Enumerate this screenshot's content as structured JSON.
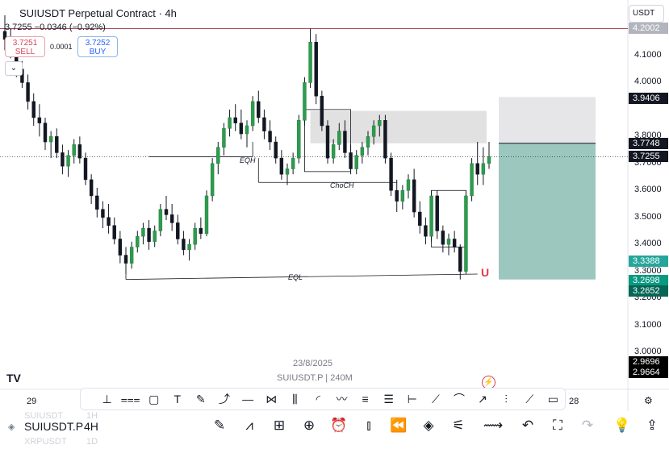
{
  "header": {
    "title": "SUIUSDT Perpetual Contract · 4h",
    "price_line": "3.7255 −0.0346 (−0.92%)",
    "sell_price": "3.7251",
    "sell_label": "SELL",
    "buy_price": "3.7252",
    "buy_label": "BUY",
    "spread": "0.0001",
    "collapse_icon": "chevron-down-icon"
  },
  "currency": "USDT",
  "price_axis": [
    "4.1000",
    "4.0000",
    "3.8000",
    "3.7000",
    "3.6000",
    "3.5000",
    "3.4000",
    "3.3000",
    "3.2000",
    "3.1000",
    "3.0000"
  ],
  "price_tags": [
    {
      "label": "4.2002",
      "color": "#b2b5be"
    },
    {
      "label": "3.9406",
      "color": "#131722"
    },
    {
      "label": "3.7748",
      "color": "#131722"
    },
    {
      "label": "3.7255",
      "color": "#131722"
    },
    {
      "label": "3.3388",
      "color": "#26a69a"
    },
    {
      "label": "3.2698",
      "color": "#089981"
    },
    {
      "label": "3.2652",
      "color": "#056656"
    },
    {
      "label": "2.9696",
      "color": "#000000"
    },
    {
      "label": "2.9664",
      "color": "#000000"
    }
  ],
  "annotations": {
    "eqh": "EQH",
    "choch": "ChoCH",
    "eql": "EQL"
  },
  "center_date": "23/8/2025",
  "center_symbol": "SUIUSDT.P | 240M",
  "time_axis": [
    "29",
    "28"
  ],
  "logo": "TV",
  "drawing_tools": [
    "cursor-cross-icon",
    "parallel-channel-icon",
    "rectangle-icon",
    "text-icon",
    "brush-icon",
    "path-icon",
    "horizontal-line-icon",
    "xabcd-pattern-icon",
    "long-position-icon",
    "arc-icon",
    "polyline-icon",
    "fib-icon",
    "pitchfork-icon",
    "date-range-icon",
    "trend-line-icon",
    "curve-icon",
    "arrow-marker-icon",
    "forecast-icon",
    "ray-icon",
    "callout-icon"
  ],
  "bottom": {
    "symbol": "SUIUSDT.P",
    "interval": "4H",
    "ghost_above_symbol": "SUIUSDT",
    "ghost_above_interval": "1H",
    "ghost_below_symbol": "XRPUSDT",
    "ghost_below_interval": "1D",
    "icons": [
      "pencil-icon",
      "indicators-icon",
      "grid-layout-icon",
      "add-icon",
      "alarm-icon",
      "candles-icon",
      "replay-icon",
      "layers-icon",
      "settings-sliders-icon",
      "compare-icon",
      "undo-icon",
      "fullscreen-icon",
      "redo-icon",
      "lightbulb-icon",
      "share-icon"
    ]
  },
  "chart_data": {
    "type": "candlestick",
    "symbol": "SUIUSDT.P",
    "interval": "4h",
    "current_price": 3.7255,
    "ylim": [
      2.92,
      4.28
    ],
    "candles": [
      [
        4.19,
        4.25,
        4.12,
        4.16
      ],
      [
        4.16,
        4.2,
        4.09,
        4.12
      ],
      [
        4.12,
        4.15,
        4.02,
        4.05
      ],
      [
        4.05,
        4.08,
        3.98,
        4.0
      ],
      [
        4.0,
        4.03,
        3.9,
        3.93
      ],
      [
        3.93,
        3.96,
        3.84,
        3.87
      ],
      [
        3.87,
        3.92,
        3.8,
        3.85
      ],
      [
        3.85,
        3.87,
        3.75,
        3.78
      ],
      [
        3.78,
        3.82,
        3.72,
        3.8
      ],
      [
        3.8,
        3.83,
        3.72,
        3.74
      ],
      [
        3.74,
        3.77,
        3.66,
        3.69
      ],
      [
        3.69,
        3.75,
        3.65,
        3.73
      ],
      [
        3.73,
        3.79,
        3.7,
        3.77
      ],
      [
        3.77,
        3.8,
        3.7,
        3.72
      ],
      [
        3.72,
        3.74,
        3.62,
        3.64
      ],
      [
        3.64,
        3.66,
        3.55,
        3.58
      ],
      [
        3.58,
        3.61,
        3.5,
        3.53
      ],
      [
        3.53,
        3.56,
        3.46,
        3.5
      ],
      [
        3.5,
        3.55,
        3.44,
        3.47
      ],
      [
        3.47,
        3.5,
        3.4,
        3.42
      ],
      [
        3.42,
        3.45,
        3.33,
        3.36
      ],
      [
        3.36,
        3.39,
        3.29,
        3.33
      ],
      [
        3.33,
        3.41,
        3.31,
        3.39
      ],
      [
        3.39,
        3.45,
        3.37,
        3.43
      ],
      [
        3.43,
        3.48,
        3.4,
        3.46
      ],
      [
        3.46,
        3.49,
        3.38,
        3.41
      ],
      [
        3.41,
        3.47,
        3.39,
        3.45
      ],
      [
        3.45,
        3.55,
        3.43,
        3.53
      ],
      [
        3.53,
        3.58,
        3.49,
        3.51
      ],
      [
        3.51,
        3.55,
        3.45,
        3.48
      ],
      [
        3.48,
        3.51,
        3.4,
        3.42
      ],
      [
        3.42,
        3.45,
        3.36,
        3.38
      ],
      [
        3.38,
        3.42,
        3.34,
        3.4
      ],
      [
        3.4,
        3.48,
        3.38,
        3.46
      ],
      [
        3.46,
        3.5,
        3.42,
        3.44
      ],
      [
        3.44,
        3.6,
        3.43,
        3.58
      ],
      [
        3.58,
        3.72,
        3.56,
        3.7
      ],
      [
        3.7,
        3.78,
        3.66,
        3.76
      ],
      [
        3.76,
        3.85,
        3.73,
        3.83
      ],
      [
        3.83,
        3.9,
        3.8,
        3.87
      ],
      [
        3.87,
        3.92,
        3.82,
        3.85
      ],
      [
        3.85,
        3.9,
        3.79,
        3.81
      ],
      [
        3.81,
        3.86,
        3.76,
        3.84
      ],
      [
        3.84,
        3.95,
        3.82,
        3.93
      ],
      [
        3.93,
        3.97,
        3.85,
        3.87
      ],
      [
        3.87,
        3.9,
        3.79,
        3.82
      ],
      [
        3.82,
        3.86,
        3.75,
        3.78
      ],
      [
        3.78,
        3.8,
        3.7,
        3.72
      ],
      [
        3.72,
        3.75,
        3.64,
        3.66
      ],
      [
        3.66,
        3.7,
        3.62,
        3.68
      ],
      [
        3.68,
        3.74,
        3.66,
        3.72
      ],
      [
        3.72,
        3.88,
        3.7,
        3.86
      ],
      [
        3.86,
        4.02,
        3.84,
        4.0
      ],
      [
        4.0,
        4.2,
        3.98,
        4.15
      ],
      [
        4.15,
        4.18,
        3.92,
        3.95
      ],
      [
        3.95,
        3.97,
        3.82,
        3.84
      ],
      [
        3.84,
        3.86,
        3.7,
        3.72
      ],
      [
        3.72,
        3.79,
        3.7,
        3.77
      ],
      [
        3.77,
        3.85,
        3.75,
        3.82
      ],
      [
        3.82,
        3.86,
        3.72,
        3.74
      ],
      [
        3.74,
        3.77,
        3.66,
        3.68
      ],
      [
        3.68,
        3.75,
        3.66,
        3.73
      ],
      [
        3.73,
        3.78,
        3.7,
        3.76
      ],
      [
        3.76,
        3.82,
        3.73,
        3.8
      ],
      [
        3.8,
        3.86,
        3.77,
        3.84
      ],
      [
        3.84,
        3.88,
        3.8,
        3.86
      ],
      [
        3.86,
        3.88,
        3.7,
        3.72
      ],
      [
        3.72,
        3.74,
        3.58,
        3.6
      ],
      [
        3.6,
        3.64,
        3.52,
        3.56
      ],
      [
        3.56,
        3.62,
        3.53,
        3.6
      ],
      [
        3.6,
        3.66,
        3.57,
        3.64
      ],
      [
        3.64,
        3.68,
        3.5,
        3.52
      ],
      [
        3.52,
        3.56,
        3.44,
        3.47
      ],
      [
        3.47,
        3.5,
        3.4,
        3.43
      ],
      [
        3.43,
        3.6,
        3.41,
        3.58
      ],
      [
        3.58,
        3.6,
        3.42,
        3.45
      ],
      [
        3.45,
        3.47,
        3.37,
        3.4
      ],
      [
        3.4,
        3.44,
        3.36,
        3.42
      ],
      [
        3.42,
        3.45,
        3.37,
        3.39
      ],
      [
        3.39,
        3.4,
        3.27,
        3.3
      ],
      [
        3.3,
        3.6,
        3.29,
        3.58
      ],
      [
        3.58,
        3.72,
        3.56,
        3.7
      ],
      [
        3.7,
        3.78,
        3.62,
        3.66
      ],
      [
        3.66,
        3.76,
        3.62,
        3.7
      ],
      [
        3.7,
        3.78,
        3.68,
        3.7255
      ]
    ],
    "levels": {
      "take_profit": 3.9406,
      "entry": 3.7748,
      "stop_loss": 3.2698,
      "eqh": 3.725,
      "choch": 3.63,
      "eql_start": 3.27,
      "eql_end": 3.29
    }
  }
}
